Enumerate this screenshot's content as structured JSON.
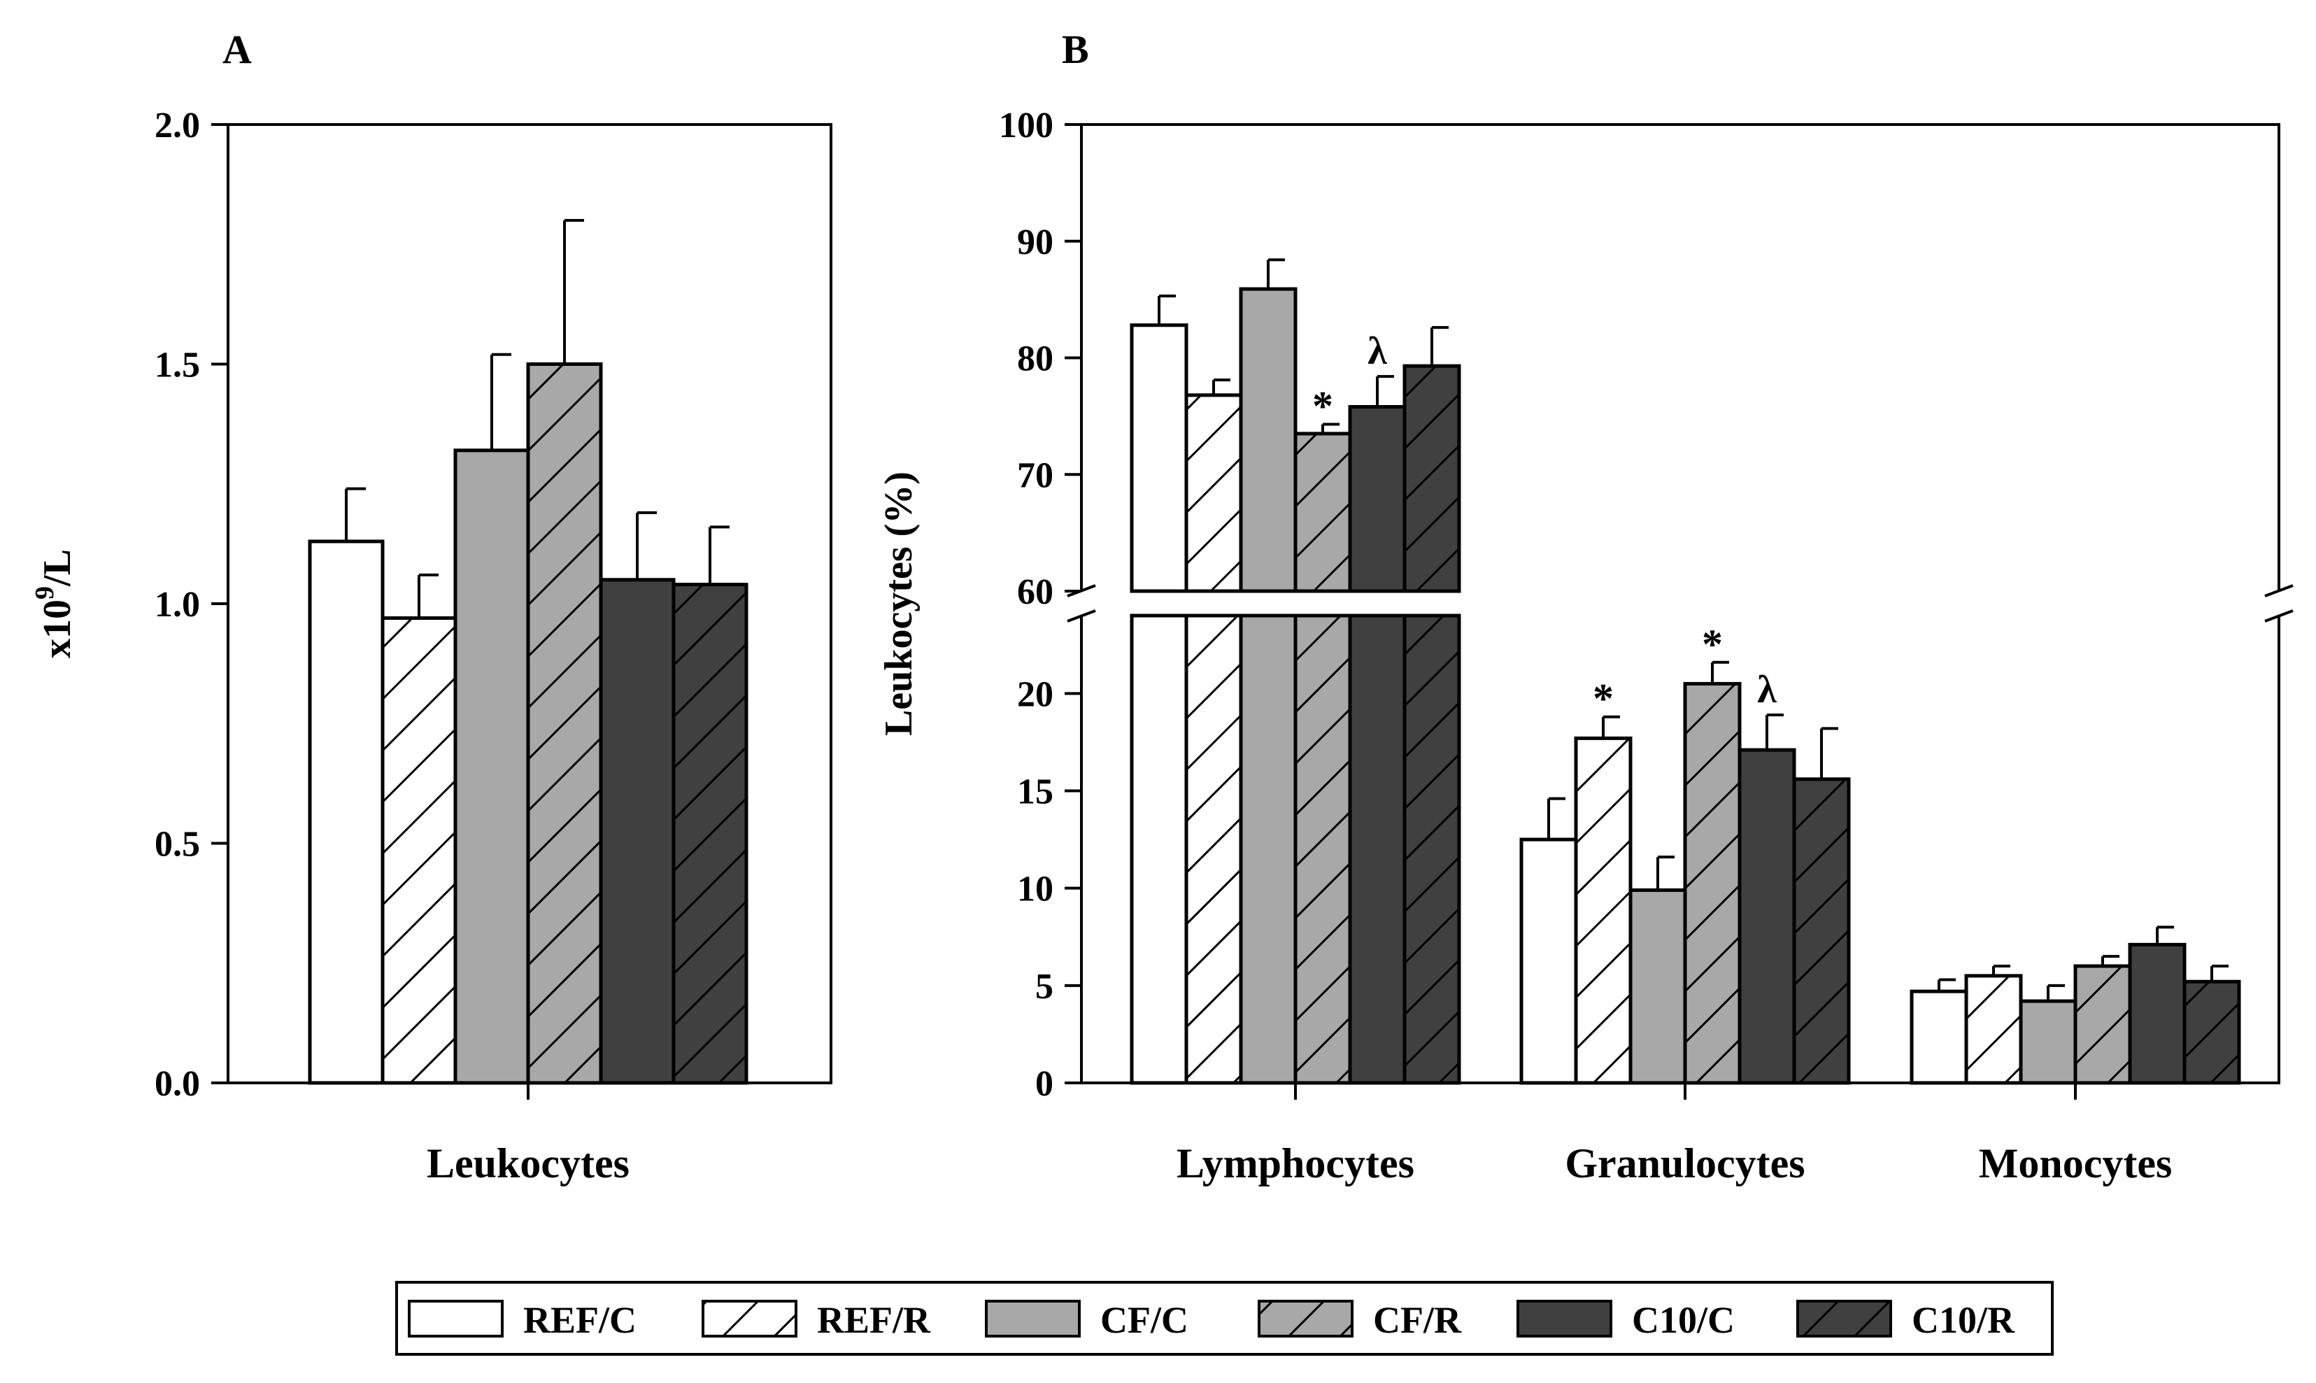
{
  "colors": {
    "REF": "#ffffff",
    "CF": "#a8a8a8",
    "C10": "#404040",
    "outline": "#000000"
  },
  "legend": [
    {
      "label": "REF/C",
      "fill": "REF",
      "hatched": false
    },
    {
      "label": "REF/R",
      "fill": "REF",
      "hatched": true
    },
    {
      "label": "CF/C",
      "fill": "CF",
      "hatched": false
    },
    {
      "label": "CF/R",
      "fill": "CF",
      "hatched": true
    },
    {
      "label": "C10/C",
      "fill": "C10",
      "hatched": false
    },
    {
      "label": "C10/R",
      "fill": "C10",
      "hatched": true
    }
  ],
  "chart_data": [
    {
      "panel": "A",
      "type": "bar",
      "ylabel": "x10",
      "ylabel_sup": "9",
      "ylabel_tail": "/L",
      "ylim": [
        0,
        2.0
      ],
      "yticks": [
        "0.0",
        "0.5",
        "1.0",
        "1.5",
        "2.0"
      ],
      "categories": [
        "Leukocytes"
      ],
      "series": [
        {
          "name": "REF/C",
          "values": [
            1.13
          ],
          "errors": [
            0.11
          ],
          "annotations": [
            ""
          ]
        },
        {
          "name": "REF/R",
          "values": [
            0.97
          ],
          "errors": [
            0.09
          ],
          "annotations": [
            ""
          ]
        },
        {
          "name": "CF/C",
          "values": [
            1.32
          ],
          "errors": [
            0.2
          ],
          "annotations": [
            ""
          ]
        },
        {
          "name": "CF/R",
          "values": [
            1.5
          ],
          "errors": [
            0.3
          ],
          "annotations": [
            ""
          ]
        },
        {
          "name": "C10/C",
          "values": [
            1.05
          ],
          "errors": [
            0.14
          ],
          "annotations": [
            ""
          ]
        },
        {
          "name": "C10/R",
          "values": [
            1.04
          ],
          "errors": [
            0.12
          ],
          "annotations": [
            ""
          ]
        }
      ]
    },
    {
      "panel": "B",
      "type": "bar",
      "ylabel": "Leukocytes (%)",
      "axis_break": true,
      "ylim_lower": [
        0,
        24
      ],
      "ylim_upper": [
        60,
        100
      ],
      "yticks_lower": [
        "0",
        "5",
        "10",
        "15",
        "20"
      ],
      "yticks_upper": [
        "60",
        "70",
        "80",
        "90",
        "100"
      ],
      "categories": [
        "Lymphocytes",
        "Granulocytes",
        "Monocytes"
      ],
      "series": [
        {
          "name": "REF/C",
          "values": [
            82.8,
            12.5,
            4.7
          ],
          "errors": [
            2.5,
            2.1,
            0.6
          ],
          "annotations": [
            "",
            "",
            ""
          ]
        },
        {
          "name": "REF/R",
          "values": [
            76.8,
            17.7,
            5.5
          ],
          "errors": [
            1.3,
            1.1,
            0.5
          ],
          "annotations": [
            "",
            "*",
            ""
          ]
        },
        {
          "name": "CF/C",
          "values": [
            85.9,
            9.9,
            4.2
          ],
          "errors": [
            2.5,
            1.7,
            0.8
          ],
          "annotations": [
            "",
            "",
            ""
          ]
        },
        {
          "name": "CF/R",
          "values": [
            73.5,
            20.5,
            6.0
          ],
          "errors": [
            0.8,
            1.1,
            0.5
          ],
          "annotations": [
            "*",
            "*",
            ""
          ]
        },
        {
          "name": "C10/C",
          "values": [
            75.8,
            17.1,
            7.1
          ],
          "errors": [
            2.6,
            1.8,
            0.9
          ],
          "annotations": [
            "λ",
            "λ",
            ""
          ]
        },
        {
          "name": "C10/R",
          "values": [
            79.3,
            15.6,
            5.2
          ],
          "errors": [
            3.3,
            2.6,
            0.8
          ],
          "annotations": [
            "",
            "",
            ""
          ]
        }
      ]
    }
  ],
  "panel_labels": {
    "a": "A",
    "b": "B"
  }
}
